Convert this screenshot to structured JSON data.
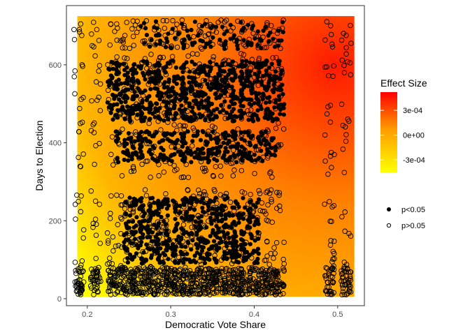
{
  "chart_data": {
    "type": "scatter",
    "title": "",
    "xlabel": "Democratic Vote Share",
    "ylabel": "Days to Election",
    "xlim": [
      0.175,
      0.532
    ],
    "ylim": [
      -18,
      752
    ],
    "x_ticks": [
      0.2,
      0.3,
      0.4,
      0.5
    ],
    "x_tick_labels": [
      "0.2",
      "0.3",
      "0.4",
      "0.5"
    ],
    "y_ticks": [
      0,
      200,
      400,
      600
    ],
    "y_tick_labels": [
      "0",
      "200",
      "400",
      "600"
    ],
    "grid": false,
    "heatmap_background": {
      "fill": "Effect Size",
      "x_range": [
        0.188,
        0.52
      ],
      "y_range": [
        5,
        725
      ],
      "color_low": "#ffff00",
      "color_mid": "#ff9900",
      "color_high": "#ff0000",
      "hotspot_x": 0.5,
      "hotspot_y": 600
    },
    "color_legend": {
      "title": "Effect Size",
      "breaks": [
        "3e-04",
        "0e+00",
        "-3e-04"
      ],
      "range": [
        -0.00045,
        0.00052
      ]
    },
    "shape_legend": {
      "entries": [
        {
          "label": "p<0.05",
          "style": "filled",
          "color": "#000000"
        },
        {
          "label": "p>0.05",
          "style": "open",
          "color": "#000000"
        }
      ]
    },
    "legend_placement": "right",
    "point_columns_x": [
      0.19,
      0.21,
      0.23,
      0.24,
      0.25,
      0.26,
      0.27,
      0.28,
      0.29,
      0.3,
      0.31,
      0.32,
      0.33,
      0.34,
      0.35,
      0.36,
      0.37,
      0.38,
      0.39,
      0.4,
      0.41,
      0.42,
      0.43,
      0.49,
      0.51
    ],
    "series": [
      {
        "name": "p<0.05",
        "marker": "filled-circle",
        "regions": [
          {
            "x": [
              0.23,
              0.43
            ],
            "y": [
              455,
              610
            ],
            "density": "dense"
          },
          {
            "x": [
              0.24,
              0.42
            ],
            "y": [
              350,
              430
            ],
            "density": "medium"
          },
          {
            "x": [
              0.25,
              0.4
            ],
            "y": [
              90,
              260
            ],
            "density": "dense"
          },
          {
            "x": [
              0.27,
              0.45
            ],
            "y": [
              640,
              712
            ],
            "density": "sparse"
          }
        ]
      },
      {
        "name": "p>0.05",
        "marker": "open-circle",
        "regions": [
          {
            "x": [
              0.19,
              0.52
            ],
            "y": [
              10,
              80
            ],
            "density": "dense"
          },
          {
            "x": [
              0.19,
              0.52
            ],
            "y": [
              10,
              280
            ],
            "density": "medium"
          },
          {
            "x": [
              0.19,
              0.52
            ],
            "y": [
              310,
              630
            ],
            "density": "medium"
          },
          {
            "x": [
              0.19,
              0.52
            ],
            "y": [
              640,
              715
            ],
            "density": "sparse"
          }
        ]
      }
    ]
  }
}
